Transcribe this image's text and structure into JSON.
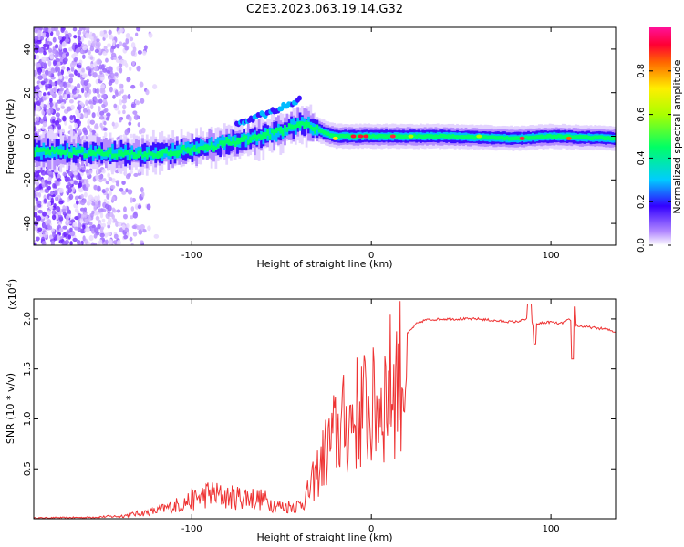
{
  "chart_data": [
    {
      "type": "heatmap",
      "title": "C2E3.2023.063.19.14.G32",
      "xlabel": "Height of straight line (km)",
      "ylabel": "Frequency (Hz)",
      "xlim": [
        -188,
        136
      ],
      "ylim": [
        -50,
        50
      ],
      "x_ticks": [
        -100,
        0,
        100
      ],
      "y_ticks": [
        40,
        20,
        0,
        -20,
        -40
      ],
      "colorbar": {
        "label": "Normalized spectral amplitude",
        "range": [
          0.0,
          1.0
        ],
        "ticks": [
          "0.0",
          "0.2",
          "0.4",
          "0.6",
          "0.8"
        ]
      },
      "ridge": {
        "description": "dominant spectral line frequency vs height",
        "x": [
          -180,
          -140,
          -120,
          -100,
          -80,
          -60,
          -45,
          -40,
          -35,
          -30,
          -25,
          -20,
          -10,
          0,
          10,
          20,
          40,
          80,
          100,
          136
        ],
        "y": [
          -7,
          -8,
          -8,
          -6,
          -3,
          0,
          4,
          6,
          5,
          3,
          1,
          0,
          0,
          0,
          0,
          0,
          0,
          -1,
          0,
          -1
        ]
      }
    },
    {
      "type": "line",
      "xlabel": "Height of straight line (km)",
      "ylabel": "SNR (10 * v/v)",
      "exponent_label": "(x10",
      "exponent": "4",
      "xlim": [
        -188,
        136
      ],
      "ylim": [
        0,
        22000
      ],
      "x_ticks": [
        -100,
        0,
        100
      ],
      "y_tick_values": [
        5000,
        10000,
        15000,
        20000
      ],
      "y_tick_labels": [
        "0.5",
        "1.0",
        "1.5",
        "2.0"
      ],
      "color": "#ee3333",
      "series": [
        {
          "name": "SNR",
          "x": [
            -188,
            -160,
            -140,
            -130,
            -120,
            -110,
            -100,
            -90,
            -80,
            -70,
            -60,
            -50,
            -40,
            -35,
            -30,
            -25,
            -20,
            -15,
            -10,
            -5,
            0,
            5,
            10,
            15,
            20,
            25,
            30,
            40,
            50,
            60,
            70,
            80,
            85,
            88,
            90,
            95,
            100,
            105,
            110,
            115,
            120,
            130,
            136
          ],
          "y": [
            100,
            150,
            300,
            600,
            900,
            1500,
            2200,
            3000,
            2500,
            2600,
            2200,
            1400,
            1600,
            3000,
            5500,
            8000,
            10000,
            11000,
            12000,
            13000,
            12500,
            14000,
            15500,
            17000,
            18500,
            19500,
            19900,
            20000,
            20000,
            20000,
            19800,
            19700,
            19900,
            20200,
            19400,
            19600,
            19700,
            19500,
            19900,
            19300,
            19200,
            19000,
            18700
          ]
        }
      ]
    }
  ]
}
